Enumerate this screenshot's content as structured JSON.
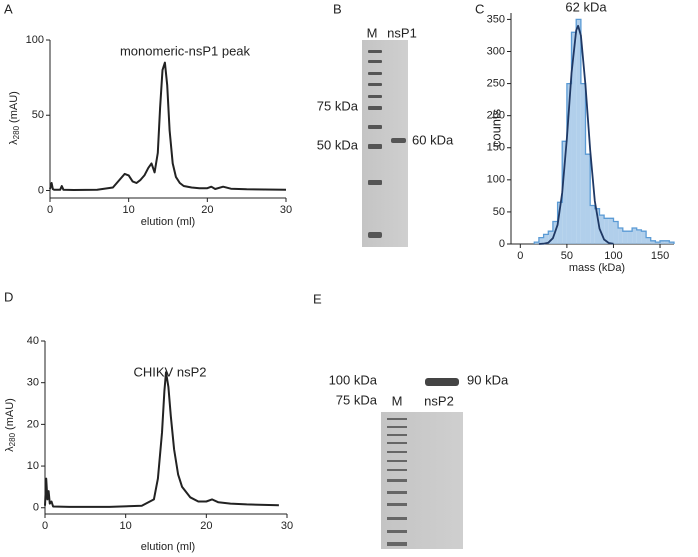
{
  "chart_data": [
    {
      "type": "line",
      "label": "A",
      "annotation": "monomeric-nsP1 peak",
      "xlabel": "elution (ml)",
      "ylabel": {
        "symbol": "λ",
        "subscript": "280",
        "unit": "(mAU)"
      },
      "xlim": [
        0,
        30
      ],
      "ylim": [
        -5,
        100
      ],
      "xticks": [
        0,
        10,
        20,
        30
      ],
      "yticks": [
        0,
        50,
        100
      ],
      "color": "#222222",
      "x": [
        0,
        0.2,
        0.35,
        0.5,
        1.3,
        1.5,
        1.7,
        3,
        6,
        8,
        9,
        9.5,
        10,
        10.5,
        11,
        11.5,
        12,
        12.5,
        12.9,
        13.3,
        13.7,
        14,
        14.3,
        14.6,
        14.9,
        15.2,
        15.6,
        16,
        16.5,
        17,
        18,
        19,
        20,
        20.5,
        21,
        22,
        23,
        25,
        30
      ],
      "values": [
        1,
        5,
        1,
        0.5,
        0.5,
        3,
        0.5,
        0.3,
        0.5,
        2,
        8,
        11,
        10,
        6,
        5,
        7,
        10,
        15,
        18,
        12,
        25,
        55,
        80,
        85,
        70,
        40,
        18,
        9,
        5,
        3,
        2,
        1.5,
        1.5,
        2.5,
        1,
        2.5,
        1.2,
        0.8,
        0.5
      ]
    },
    {
      "type": "histogram",
      "label": "C",
      "annotation": "62 kDa",
      "xlabel": "mass (kDa)",
      "ylabel": "counts",
      "xlim": [
        -10,
        165
      ],
      "ylim": [
        0,
        360
      ],
      "xticks": [
        0,
        50,
        100,
        150
      ],
      "yticks": [
        0,
        50,
        100,
        150,
        200,
        250,
        300,
        350
      ],
      "color": "#9dc3e6",
      "edge_color": "#5b9bd5",
      "fit_color": "#1f3864",
      "bins": [
        15,
        20,
        25,
        30,
        35,
        40,
        45,
        50,
        55,
        60,
        65,
        70,
        75,
        80,
        85,
        90,
        95,
        100,
        105,
        110,
        115,
        120,
        125,
        130,
        135,
        140,
        145,
        150,
        155,
        160,
        165
      ],
      "values": [
        3,
        10,
        15,
        20,
        35,
        65,
        160,
        250,
        330,
        350,
        250,
        140,
        60,
        55,
        45,
        40,
        40,
        35,
        25,
        20,
        20,
        25,
        22,
        20,
        10,
        5,
        3,
        5,
        5,
        3
      ],
      "fit": {
        "x": [
          20,
          25,
          30,
          35,
          40,
          45,
          50,
          55,
          60,
          62,
          65,
          70,
          75,
          80,
          85,
          90,
          95,
          100
        ],
        "values": [
          0,
          0.4,
          2,
          9,
          30,
          80,
          165,
          266,
          333,
          340,
          325,
          247,
          146,
          67,
          24,
          7,
          1.5,
          0.3
        ]
      }
    },
    {
      "type": "line",
      "label": "D",
      "annotation": "CHIKV nsP2",
      "xlabel": "elution (ml)",
      "ylabel": {
        "symbol": "λ",
        "subscript": "280",
        "unit": "(mAU)"
      },
      "xlim": [
        0,
        30
      ],
      "ylim": [
        -1.5,
        40
      ],
      "xticks": [
        0,
        10,
        20,
        30
      ],
      "yticks": [
        0,
        10,
        20,
        30,
        40
      ],
      "color": "#222222",
      "x": [
        0,
        0.15,
        0.3,
        0.45,
        0.6,
        0.8,
        1,
        3,
        8,
        12,
        13.5,
        14,
        14.5,
        14.8,
        15,
        15.3,
        15.6,
        16,
        16.5,
        17,
        18,
        19,
        20,
        20.7,
        21.5,
        23,
        25,
        29
      ],
      "values": [
        0.5,
        7,
        2,
        4,
        1,
        1.5,
        0.3,
        0.2,
        0.2,
        0.5,
        2,
        7,
        18,
        28,
        32.5,
        29,
        22,
        14,
        8,
        5,
        2.5,
        1.5,
        1.5,
        2,
        1.3,
        1,
        0.8,
        0.6
      ]
    }
  ],
  "gels": [
    {
      "label": "B",
      "lanes": [
        "M",
        "nsP1"
      ],
      "markers": [
        "75 kDa",
        "50 kDa"
      ],
      "band": "60 kDa"
    },
    {
      "label": "E",
      "lanes": [
        "M",
        "nsP2"
      ],
      "markers": [
        "100 kDa",
        "75 kDa"
      ],
      "band": "90 kDa"
    }
  ]
}
